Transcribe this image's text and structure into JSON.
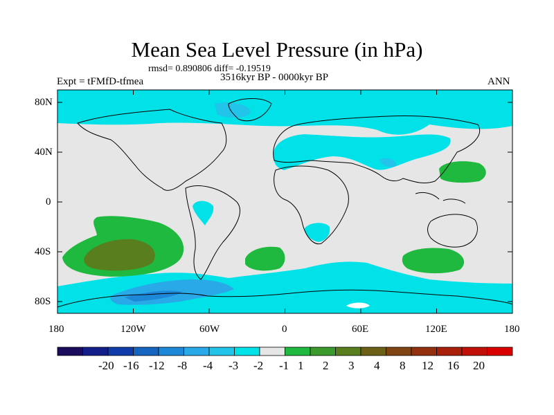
{
  "title": "Mean Sea Level Pressure (in hPa)",
  "stats": "rmsd= 0.890806 diff= -0.19519",
  "experiment": "Expt = tFMfD-tfmea",
  "period": "3516kyr BP - 0000kyr BP",
  "season": "ANN",
  "lat_ticks": [
    "80N",
    "40N",
    "0",
    "40S",
    "80S"
  ],
  "lon_ticks": [
    "180",
    "120W",
    "60W",
    "0",
    "60E",
    "120E",
    "180"
  ],
  "colorbar": {
    "colors": [
      "#1a0b5c",
      "#141e8a",
      "#0f3ca8",
      "#1565c0",
      "#1e88d8",
      "#29a9e8",
      "#22c4ea",
      "#00e2e8",
      "#e6e6e6",
      "#1fb93f",
      "#3a9a2c",
      "#587e1e",
      "#6b6016",
      "#804412",
      "#93300e",
      "#a81f0a",
      "#c01008",
      "#d80000"
    ],
    "labels": [
      "-20",
      "-16",
      "-12",
      "-8",
      "-4",
      "-3",
      "-2",
      "-1",
      "1",
      "2",
      "3",
      "4",
      "8",
      "12",
      "16",
      "20"
    ]
  },
  "colors": {
    "neutral": "#e6e6e6",
    "cyan": "#00e2e8",
    "light_blue": "#22c4ea",
    "mid_blue": "#29a9e8",
    "green": "#1fb93f",
    "olive": "#587e1e"
  }
}
